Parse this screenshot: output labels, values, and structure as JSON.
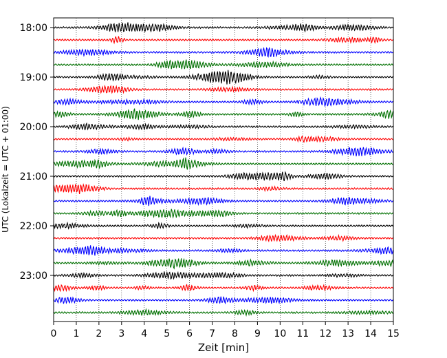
{
  "chart_data": {
    "type": "line",
    "xlabel": "Zeit  [min]",
    "ylabel": "UTC (Lokalzeit = UTC + 01:00)",
    "xlim": [
      0,
      15
    ],
    "x_ticks": [
      "0",
      "1",
      "2",
      "3",
      "4",
      "5",
      "6",
      "7",
      "8",
      "9",
      "10",
      "11",
      "12",
      "13",
      "14",
      "15"
    ],
    "y_tick_labels": [
      "18:00",
      "19:00",
      "20:00",
      "21:00",
      "22:00",
      "23:00"
    ],
    "grid": "vertical-dotted",
    "trace_minutes_per_line": 15,
    "traces_per_hour": 4,
    "trace_count": 24,
    "series_colors": [
      "#000000",
      "#ff0000",
      "#0000ff",
      "#007000"
    ]
  }
}
